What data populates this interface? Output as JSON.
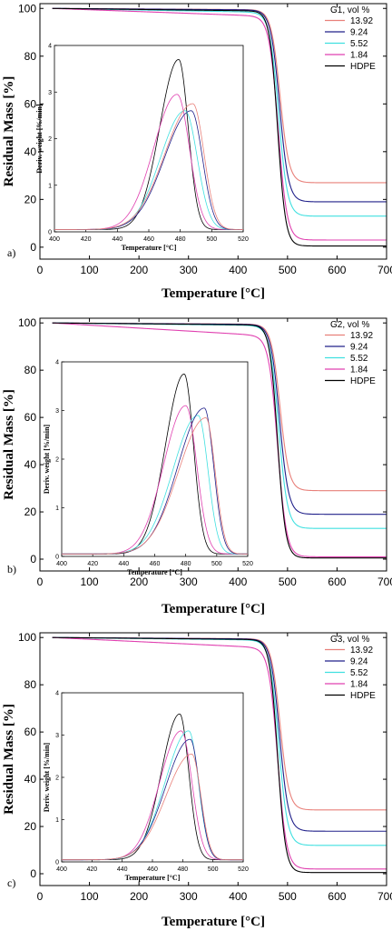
{
  "chart_data": [
    {
      "type": "line",
      "panel_label": "a)",
      "xlabel": "Temperature [°C]",
      "ylabel": "Residual Mass [%]",
      "xlim": [
        0,
        700
      ],
      "ylim": [
        -5,
        102
      ],
      "xticks": [
        0,
        100,
        200,
        300,
        400,
        500,
        600,
        700
      ],
      "yticks": [
        0,
        20,
        40,
        60,
        80,
        100
      ],
      "legend_title": "G1,  vol  %",
      "legend_position": "top-right",
      "series": [
        {
          "name": "13.92",
          "color": "#e8807a",
          "initial": 100,
          "onset_T": 455,
          "mid_T": 485,
          "width": 9,
          "drift": 0.5,
          "residue": 27
        },
        {
          "name": "9.24",
          "color": "#20208a",
          "initial": 100,
          "onset_T": 455,
          "mid_T": 484,
          "width": 9,
          "drift": 0.6,
          "residue": 19
        },
        {
          "name": "5.52",
          "color": "#40e0e0",
          "initial": 100,
          "onset_T": 452,
          "mid_T": 482,
          "width": 9,
          "drift": 1.5,
          "residue": 13
        },
        {
          "name": "1.84",
          "color": "#e040b0",
          "initial": 100,
          "onset_T": 450,
          "mid_T": 481,
          "width": 9,
          "drift": 3.0,
          "residue": 3
        },
        {
          "name": "HDPE",
          "color": "#000000",
          "initial": 100,
          "onset_T": 455,
          "mid_T": 480,
          "width": 8,
          "drift": 1.0,
          "residue": 0.5
        }
      ],
      "inset": {
        "xlabel": "Temperature [°C]",
        "ylabel": "Deriv. weight [%/min]",
        "xlim": [
          400,
          520
        ],
        "ylim": [
          0,
          4
        ],
        "xticks": [
          400,
          420,
          440,
          460,
          480,
          500,
          520
        ],
        "yticks": [
          0,
          1,
          2,
          3,
          4
        ],
        "series": [
          {
            "name": "HDPE",
            "color": "#000000",
            "peak_T": 479,
            "peak": 3.65,
            "left_width": 17,
            "right_width": 8.5
          },
          {
            "name": "1.84",
            "color": "#e040b0",
            "peak_T": 478,
            "peak": 2.9,
            "left_width": 21,
            "right_width": 11
          },
          {
            "name": "5.52",
            "color": "#40e0e0",
            "peak_T": 483,
            "peak": 2.55,
            "left_width": 22,
            "right_width": 11
          },
          {
            "name": "9.24",
            "color": "#20208a",
            "peak_T": 487,
            "peak": 2.55,
            "left_width": 24,
            "right_width": 10
          },
          {
            "name": "13.92",
            "color": "#e8807a",
            "peak_T": 488,
            "peak": 2.7,
            "left_width": 25,
            "right_width": 10
          }
        ]
      }
    },
    {
      "type": "line",
      "panel_label": "b)",
      "xlabel": "Temperature [°C]",
      "ylabel": "Residual Mass [%]",
      "xlim": [
        0,
        700
      ],
      "ylim": [
        -5,
        102
      ],
      "xticks": [
        0,
        100,
        200,
        300,
        400,
        500,
        600,
        700
      ],
      "yticks": [
        0,
        20,
        40,
        60,
        80,
        100
      ],
      "legend_title": "G2,  vol  %",
      "legend_position": "top-right",
      "series": [
        {
          "name": "13.92",
          "color": "#e8807a",
          "initial": 100,
          "onset_T": 455,
          "mid_T": 485,
          "width": 9,
          "drift": 0.5,
          "residue": 29
        },
        {
          "name": "9.24",
          "color": "#20208a",
          "initial": 100,
          "onset_T": 455,
          "mid_T": 484,
          "width": 9,
          "drift": 0.6,
          "residue": 19
        },
        {
          "name": "5.52",
          "color": "#40e0e0",
          "initial": 100,
          "onset_T": 452,
          "mid_T": 482,
          "width": 9,
          "drift": 1.0,
          "residue": 13
        },
        {
          "name": "1.84",
          "color": "#e040b0",
          "initial": 100,
          "onset_T": 448,
          "mid_T": 480,
          "width": 9,
          "drift": 5.0,
          "residue": 1
        },
        {
          "name": "HDPE",
          "color": "#000000",
          "initial": 100,
          "onset_T": 455,
          "mid_T": 480,
          "width": 8,
          "drift": 0.8,
          "residue": 0.5
        }
      ],
      "inset": {
        "xlabel": "Temperature [°C]",
        "ylabel": "Deriv. weight [%/min]",
        "xlim": [
          400,
          520
        ],
        "ylim": [
          0,
          4
        ],
        "xticks": [
          400,
          420,
          440,
          460,
          480,
          500,
          520
        ],
        "yticks": [
          0,
          1,
          2,
          3,
          4
        ],
        "series": [
          {
            "name": "HDPE",
            "color": "#000000",
            "peak_T": 479,
            "peak": 3.7,
            "left_width": 17,
            "right_width": 8.5
          },
          {
            "name": "1.84",
            "color": "#e040b0",
            "peak_T": 480,
            "peak": 3.05,
            "left_width": 20,
            "right_width": 10
          },
          {
            "name": "5.52",
            "color": "#40e0e0",
            "peak_T": 488,
            "peak": 2.85,
            "left_width": 23,
            "right_width": 9
          },
          {
            "name": "9.24",
            "color": "#20208a",
            "peak_T": 492,
            "peak": 3.0,
            "left_width": 24,
            "right_width": 8.5
          },
          {
            "name": "13.92",
            "color": "#e8807a",
            "peak_T": 493,
            "peak": 2.8,
            "left_width": 25,
            "right_width": 8.5
          }
        ]
      }
    },
    {
      "type": "line",
      "panel_label": "c)",
      "xlabel": "Temperature [°C]",
      "ylabel": "Residual Mass [%]",
      "xlim": [
        0,
        700
      ],
      "ylim": [
        -5,
        102
      ],
      "xticks": [
        0,
        100,
        200,
        300,
        400,
        500,
        600,
        700
      ],
      "yticks": [
        0,
        20,
        40,
        60,
        80,
        100
      ],
      "legend_title": "G3,  vol  %",
      "legend_position": "top-right",
      "series": [
        {
          "name": "13.92",
          "color": "#e8807a",
          "initial": 100,
          "onset_T": 455,
          "mid_T": 485,
          "width": 9,
          "drift": 0.5,
          "residue": 27
        },
        {
          "name": "9.24",
          "color": "#20208a",
          "initial": 100,
          "onset_T": 455,
          "mid_T": 484,
          "width": 9,
          "drift": 0.6,
          "residue": 18
        },
        {
          "name": "5.52",
          "color": "#40e0e0",
          "initial": 100,
          "onset_T": 452,
          "mid_T": 482,
          "width": 9,
          "drift": 1.0,
          "residue": 12
        },
        {
          "name": "1.84",
          "color": "#e040b0",
          "initial": 100,
          "onset_T": 448,
          "mid_T": 480,
          "width": 9,
          "drift": 4.0,
          "residue": 2
        },
        {
          "name": "HDPE",
          "color": "#000000",
          "initial": 100,
          "onset_T": 455,
          "mid_T": 480,
          "width": 8,
          "drift": 0.8,
          "residue": 0.5
        }
      ],
      "inset": {
        "xlabel": "Temperature [°C]",
        "ylabel": "Deriv. weight [%/min]",
        "xlim": [
          400,
          520
        ],
        "ylim": [
          0,
          4
        ],
        "xticks": [
          400,
          420,
          440,
          460,
          480,
          500,
          520
        ],
        "yticks": [
          0,
          1,
          2,
          3,
          4
        ],
        "series": [
          {
            "name": "HDPE",
            "color": "#000000",
            "peak_T": 478,
            "peak": 3.45,
            "left_width": 17,
            "right_width": 8.5
          },
          {
            "name": "1.84",
            "color": "#e040b0",
            "peak_T": 479,
            "peak": 3.05,
            "left_width": 20,
            "right_width": 10
          },
          {
            "name": "5.52",
            "color": "#40e0e0",
            "peak_T": 484,
            "peak": 3.05,
            "left_width": 22,
            "right_width": 9
          },
          {
            "name": "9.24",
            "color": "#20208a",
            "peak_T": 485,
            "peak": 2.85,
            "left_width": 23,
            "right_width": 8.5
          },
          {
            "name": "13.92",
            "color": "#e8807a",
            "peak_T": 486,
            "peak": 2.5,
            "left_width": 24,
            "right_width": 8.5
          }
        ]
      }
    }
  ]
}
